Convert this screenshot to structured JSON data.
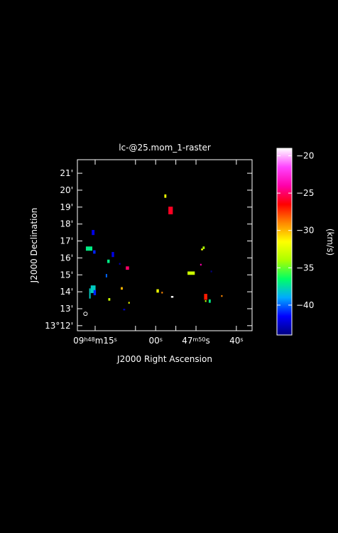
{
  "chart_data": {
    "type": "heatmap",
    "title": "lc-@25.mom_1-raster",
    "xlabel": "J2000 Right Ascension",
    "ylabel": "J2000 Declination",
    "colorbar_label": "(km/s)",
    "background": "#000000",
    "x_ticks": [
      {
        "ra_s": 75,
        "label": "09^h48^m15^s"
      },
      {
        "ra_s": 65,
        "label": ""
      },
      {
        "ra_s": 60,
        "label": "00^s"
      },
      {
        "ra_s": 55,
        "label": ""
      },
      {
        "ra_s": 50,
        "label": "47^m50^s"
      },
      {
        "ra_s": 40,
        "label": "40^s"
      }
    ],
    "y_ticks": [
      {
        "dec_min": 12,
        "label": "13°12'"
      },
      {
        "dec_min": 13,
        "label": "13'"
      },
      {
        "dec_min": 14,
        "label": "14'"
      },
      {
        "dec_min": 15,
        "label": "15'"
      },
      {
        "dec_min": 16,
        "label": "16'"
      },
      {
        "dec_min": 17,
        "label": "17'"
      },
      {
        "dec_min": 18,
        "label": "18'"
      },
      {
        "dec_min": 19,
        "label": "19'"
      },
      {
        "dec_min": 20,
        "label": "20'"
      },
      {
        "dec_min": 21,
        "label": "21'"
      }
    ],
    "xlim_ra_s": [
      79.4,
      36.1
    ],
    "ylim_dec_min": [
      11.7,
      21.8
    ],
    "colorbar": {
      "range": [
        -44,
        -19
      ],
      "ticks": [
        -20,
        -25,
        -30,
        -35,
        -40
      ],
      "tick_labels": [
        "−20",
        "−25",
        "−30",
        "−35",
        "−40"
      ],
      "colormap": [
        "#000080",
        "#0000ff",
        "#00aaff",
        "#00ff66",
        "#aaff00",
        "#ffff00",
        "#ff8800",
        "#ff0000",
        "#ff00aa",
        "#ff44ff",
        "#ffffff"
      ]
    },
    "pixels": [
      {
        "ra": 57.6,
        "dec": 19.65,
        "v": -32,
        "w": 0.5,
        "h": 0.2
      },
      {
        "ra": 56.3,
        "dec": 18.8,
        "v": -26,
        "w": 1.1,
        "h": 0.45
      },
      {
        "ra": 75.5,
        "dec": 17.5,
        "v": -42,
        "w": 0.7,
        "h": 0.3
      },
      {
        "ra": 76.5,
        "dec": 16.55,
        "v": -37,
        "w": 1.6,
        "h": 0.25
      },
      {
        "ra": 75.2,
        "dec": 16.35,
        "v": -41,
        "w": 0.6,
        "h": 0.2
      },
      {
        "ra": 70.6,
        "dec": 16.2,
        "v": -42,
        "w": 0.6,
        "h": 0.3
      },
      {
        "ra": 71.7,
        "dec": 15.8,
        "v": -37,
        "w": 0.6,
        "h": 0.2
      },
      {
        "ra": 68.9,
        "dec": 15.65,
        "v": -43,
        "w": 0.2,
        "h": 0.1
      },
      {
        "ra": 67.0,
        "dec": 15.4,
        "v": -25,
        "w": 0.8,
        "h": 0.2
      },
      {
        "ra": 72.2,
        "dec": 14.95,
        "v": -40,
        "w": 0.3,
        "h": 0.2
      },
      {
        "ra": 76.3,
        "dec": 13.9,
        "v": -38,
        "w": 0.3,
        "h": 0.6
      },
      {
        "ra": 75.5,
        "dec": 14.15,
        "v": -38,
        "w": 1.2,
        "h": 0.45
      },
      {
        "ra": 75.1,
        "dec": 13.95,
        "v": -41,
        "w": 0.6,
        "h": 0.3
      },
      {
        "ra": 71.5,
        "dec": 13.55,
        "v": -33,
        "w": 0.5,
        "h": 0.15
      },
      {
        "ra": 68.4,
        "dec": 14.2,
        "v": -30,
        "w": 0.5,
        "h": 0.15
      },
      {
        "ra": 66.6,
        "dec": 13.35,
        "v": -32,
        "w": 0.3,
        "h": 0.1
      },
      {
        "ra": 67.8,
        "dec": 12.95,
        "v": -43,
        "w": 0.5,
        "h": 0.1
      },
      {
        "ra": 59.5,
        "dec": 14.05,
        "v": -32,
        "w": 0.6,
        "h": 0.2
      },
      {
        "ra": 58.4,
        "dec": 13.95,
        "v": -29,
        "w": 0.2,
        "h": 0.1
      },
      {
        "ra": 55.9,
        "dec": 13.7,
        "v": -19,
        "w": 0.6,
        "h": 0.1
      },
      {
        "ra": 51.2,
        "dec": 15.1,
        "v": -33,
        "w": 1.8,
        "h": 0.2
      },
      {
        "ra": 48.1,
        "dec": 16.6,
        "v": -34,
        "w": 0.5,
        "h": 0.15
      },
      {
        "ra": 48.5,
        "dec": 16.5,
        "v": -32,
        "w": 0.5,
        "h": 0.1
      },
      {
        "ra": 48.8,
        "dec": 15.6,
        "v": -24,
        "w": 0.15,
        "h": 0.1
      },
      {
        "ra": 46.2,
        "dec": 15.2,
        "v": -44,
        "w": 0.3,
        "h": 0.1
      },
      {
        "ra": 47.6,
        "dec": 13.7,
        "v": -27,
        "w": 0.8,
        "h": 0.35
      },
      {
        "ra": 46.6,
        "dec": 13.45,
        "v": -37,
        "w": 0.5,
        "h": 0.2
      },
      {
        "ra": 47.6,
        "dec": 13.45,
        "v": -34,
        "w": 0.2,
        "h": 0.1
      },
      {
        "ra": 43.6,
        "dec": 13.75,
        "v": -29,
        "w": 0.2,
        "h": 0.1
      }
    ],
    "beam": {
      "ra": 77.4,
      "dec": 12.7
    }
  }
}
